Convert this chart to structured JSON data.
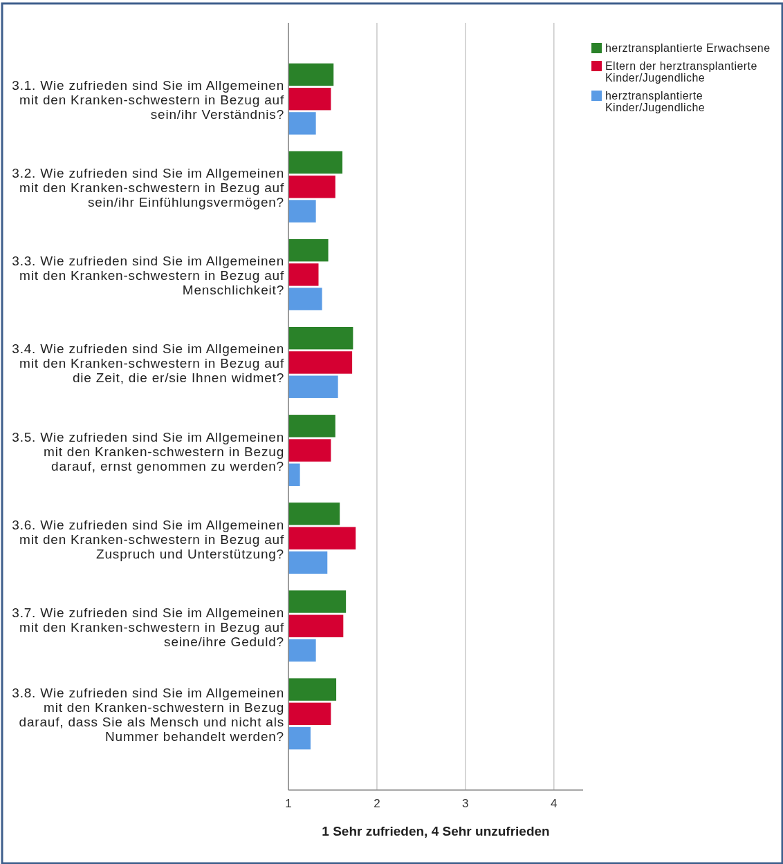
{
  "chart_data": {
    "type": "bar",
    "orientation": "horizontal",
    "categories": [
      "3.1. Wie zufrieden sind Sie im Allgemeinen mit den Kranken-schwestern in Bezug auf sein/ihr Verständnis?",
      "3.2. Wie zufrieden sind Sie im Allgemeinen mit den Kranken-schwestern in Bezug auf sein/ihr Einfühlungsvermögen?",
      "3.3. Wie zufrieden sind Sie im Allgemeinen mit den Kranken-schwestern in Bezug auf Menschlichkeit?",
      "3.4. Wie zufrieden sind Sie im Allgemeinen mit den Kranken-schwestern in Bezug auf die Zeit, die er/sie Ihnen widmet?",
      "3.5. Wie zufrieden sind Sie im Allgemeinen mit den Kranken-schwestern in Bezug darauf, ernst genommen zu werden?",
      "3.6. Wie zufrieden sind Sie im Allgemeinen mit den Kranken-schwestern in Bezug auf Zuspruch und Unterstützung?",
      "3.7. Wie zufrieden sind Sie im Allgemeinen mit den Kranken-schwestern in Bezug auf seine/ihre Geduld?",
      "3.8. Wie zufrieden sind Sie im Allgemeinen mit den Kranken-schwestern in Bezug darauf, dass Sie als Mensch und nicht als Nummer behandelt werden?"
    ],
    "series": [
      {
        "name": "herztransplantierte Erwachsene",
        "color": "#2a8229",
        "values": [
          1.51,
          1.61,
          1.45,
          1.73,
          1.53,
          1.58,
          1.65,
          1.54
        ]
      },
      {
        "name": "Eltern der herztransplantierte Kinder/Jugendliche",
        "color": "#d50032",
        "values": [
          1.48,
          1.53,
          1.34,
          1.72,
          1.48,
          1.76,
          1.62,
          1.48
        ]
      },
      {
        "name": "herztransplantierte Kinder/Jugendliche",
        "color": "#5a9be5",
        "values": [
          1.31,
          1.31,
          1.38,
          1.56,
          1.13,
          1.44,
          1.31,
          1.25
        ]
      }
    ],
    "xlabel": "1 Sehr zufrieden, 4 Sehr unzufrieden",
    "xlim": [
      1,
      4.33
    ],
    "xticks": [
      1,
      2,
      3,
      4
    ],
    "grid": "x",
    "legend": "top right"
  }
}
